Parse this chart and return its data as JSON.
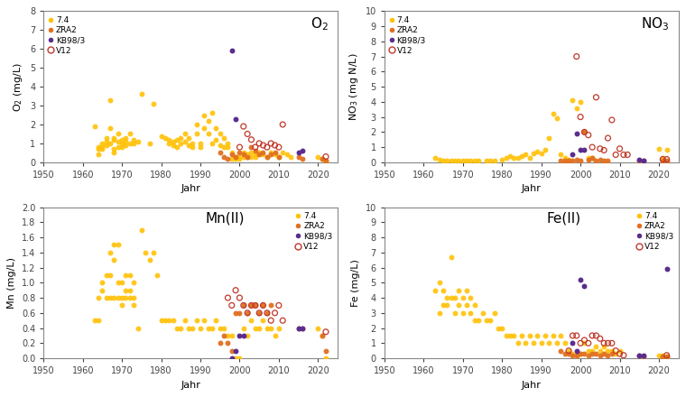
{
  "colors": {
    "7.4": "#FFC107",
    "ZRA2": "#E07020",
    "KB98/3": "#5B2D8E",
    "V12": "#C0392B"
  },
  "O2": {
    "7.4": {
      "x": [
        1963,
        1964,
        1964,
        1964,
        1965,
        1965,
        1965,
        1966,
        1966,
        1966,
        1967,
        1967,
        1967,
        1968,
        1968,
        1968,
        1968,
        1969,
        1969,
        1969,
        1970,
        1970,
        1970,
        1971,
        1971,
        1971,
        1972,
        1972,
        1973,
        1973,
        1974,
        1975,
        1977,
        1978,
        1980,
        1981,
        1982,
        1982,
        1983,
        1983,
        1984,
        1984,
        1985,
        1985,
        1986,
        1986,
        1987,
        1987,
        1988,
        1988,
        1989,
        1989,
        1990,
        1990,
        1991,
        1991,
        1992,
        1992,
        1993,
        1993,
        1994,
        1994,
        1995,
        1995,
        1996,
        1996,
        1997,
        1997,
        1998,
        1998,
        1999,
        1999,
        2000,
        2000,
        2001,
        2001,
        2002,
        2002,
        2003,
        2003,
        2004,
        2004,
        2005,
        2006,
        2007,
        2008,
        2009,
        2010,
        2011,
        2012,
        2013,
        2020,
        2021,
        2022
      ],
      "y": [
        1.9,
        0.8,
        0.7,
        0.4,
        1.0,
        0.8,
        0.7,
        1.3,
        1.1,
        0.9,
        3.3,
        1.8,
        1.0,
        1.3,
        1.2,
        0.7,
        0.5,
        1.5,
        1.1,
        0.8,
        1.2,
        1.0,
        0.8,
        1.3,
        1.1,
        0.9,
        1.5,
        1.0,
        1.2,
        1.0,
        1.1,
        3.6,
        1.0,
        3.1,
        1.4,
        1.3,
        1.2,
        1.0,
        1.1,
        0.9,
        1.2,
        0.8,
        1.3,
        1.0,
        1.5,
        1.1,
        1.3,
        0.9,
        1.0,
        0.8,
        2.0,
        1.5,
        1.0,
        0.8,
        2.5,
        1.8,
        2.2,
        1.5,
        2.6,
        1.0,
        1.8,
        1.2,
        1.5,
        0.9,
        1.3,
        0.8,
        1.0,
        0.8,
        0.5,
        0.2,
        0.3,
        0.2,
        0.3,
        0.2,
        0.5,
        0.3,
        0.4,
        0.3,
        0.5,
        0.3,
        0.4,
        0.3,
        0.5,
        0.4,
        0.3,
        0.5,
        0.4,
        0.3,
        0.5,
        0.4,
        0.3,
        0.3,
        0.2,
        0.1
      ]
    },
    "ZRA2": {
      "x": [
        1995,
        1996,
        1997,
        1998,
        1999,
        2000,
        2001,
        2002,
        2003,
        2004,
        2005,
        2006,
        2007,
        2008,
        2009,
        2010,
        2015,
        2016,
        2021,
        2022
      ],
      "y": [
        0.5,
        0.3,
        0.2,
        0.4,
        0.3,
        0.5,
        0.4,
        0.3,
        0.8,
        0.6,
        0.4,
        0.5,
        0.3,
        0.4,
        0.5,
        0.3,
        0.3,
        0.2,
        0.2,
        0.1
      ]
    },
    "KB98/3": {
      "x": [
        1998,
        1999,
        2015,
        2016
      ],
      "y": [
        5.9,
        2.3,
        0.5,
        0.6
      ]
    },
    "V12": {
      "x": [
        2000,
        2001,
        2002,
        2003,
        2004,
        2005,
        2006,
        2007,
        2008,
        2009,
        2010,
        2011,
        2022
      ],
      "y": [
        0.8,
        1.9,
        1.5,
        1.2,
        0.8,
        1.0,
        0.9,
        0.8,
        1.0,
        0.9,
        0.8,
        2.0,
        0.3
      ]
    }
  },
  "NO3": {
    "7.4": {
      "x": [
        1963,
        1964,
        1965,
        1966,
        1967,
        1968,
        1969,
        1970,
        1971,
        1972,
        1973,
        1974,
        1976,
        1977,
        1978,
        1980,
        1981,
        1982,
        1983,
        1984,
        1985,
        1986,
        1987,
        1988,
        1989,
        1990,
        1991,
        1992,
        1993,
        1994,
        1995,
        1996,
        1997,
        1998,
        1999,
        2000,
        2001,
        2002,
        2003,
        2020,
        2021,
        2022
      ],
      "y": [
        0.3,
        0.2,
        0.1,
        0.1,
        0.1,
        0.1,
        0.1,
        0.1,
        0.1,
        0.1,
        0.1,
        0.1,
        0.1,
        0.1,
        0.1,
        0.2,
        0.3,
        0.4,
        0.3,
        0.3,
        0.4,
        0.5,
        0.3,
        0.6,
        0.7,
        0.6,
        0.8,
        1.6,
        3.2,
        2.9,
        0.5,
        0.3,
        0.2,
        4.1,
        3.6,
        4.0,
        2.0,
        0.3,
        0.3,
        0.9,
        0.3,
        0.8
      ]
    },
    "ZRA2": {
      "x": [
        1995,
        1996,
        1997,
        1998,
        1999,
        2000,
        2001,
        2002,
        2003,
        2004,
        2005,
        2006,
        2007,
        2015,
        2016,
        2021,
        2022
      ],
      "y": [
        0.1,
        0.1,
        0.1,
        0.1,
        0.2,
        0.1,
        2.0,
        0.2,
        0.3,
        0.1,
        0.2,
        0.1,
        0.1,
        0.1,
        0.1,
        0.1,
        0.1
      ]
    },
    "KB98/3": {
      "x": [
        1998,
        1999,
        2000,
        2001,
        2015,
        2016
      ],
      "y": [
        0.5,
        1.9,
        0.8,
        0.8,
        0.2,
        0.1
      ]
    },
    "V12": {
      "x": [
        1999,
        2000,
        2001,
        2002,
        2003,
        2004,
        2005,
        2006,
        2007,
        2008,
        2009,
        2010,
        2011,
        2012,
        2021,
        2022
      ],
      "y": [
        7.0,
        3.0,
        2.0,
        1.8,
        1.0,
        4.3,
        0.9,
        0.8,
        1.6,
        2.8,
        0.5,
        0.9,
        0.5,
        0.5,
        0.2,
        0.2
      ]
    }
  },
  "Mn": {
    "7.4": {
      "x": [
        1963,
        1964,
        1964,
        1965,
        1965,
        1966,
        1966,
        1967,
        1967,
        1967,
        1968,
        1968,
        1968,
        1969,
        1969,
        1969,
        1970,
        1970,
        1970,
        1971,
        1971,
        1971,
        1972,
        1972,
        1972,
        1973,
        1973,
        1973,
        1974,
        1975,
        1976,
        1977,
        1978,
        1979,
        1980,
        1981,
        1982,
        1983,
        1984,
        1985,
        1986,
        1987,
        1988,
        1989,
        1990,
        1991,
        1992,
        1993,
        1994,
        1995,
        1996,
        1997,
        1998,
        1999,
        2000,
        2001,
        2002,
        2003,
        2004,
        2005,
        2006,
        2007,
        2008,
        2009,
        2010,
        2020,
        2021,
        2022
      ],
      "y": [
        0.5,
        0.8,
        0.5,
        1.0,
        0.9,
        1.1,
        0.8,
        1.4,
        1.1,
        0.8,
        1.5,
        1.3,
        0.8,
        1.5,
        1.0,
        0.8,
        1.0,
        0.8,
        0.7,
        1.1,
        0.9,
        0.8,
        1.1,
        0.9,
        0.8,
        1.0,
        0.8,
        0.7,
        0.4,
        1.7,
        1.4,
        1.3,
        1.4,
        1.1,
        0.5,
        0.5,
        0.5,
        0.5,
        0.4,
        0.4,
        0.5,
        0.4,
        0.4,
        0.5,
        0.4,
        0.5,
        0.4,
        0.4,
        0.5,
        0.4,
        0.4,
        0.3,
        0.3,
        0.0,
        0.0,
        0.4,
        0.3,
        0.5,
        0.4,
        0.4,
        0.5,
        0.4,
        0.4,
        0.3,
        0.4,
        0.4,
        0.3,
        0.0
      ]
    },
    "ZRA2": {
      "x": [
        1995,
        1996,
        1997,
        1998,
        1999,
        2000,
        2001,
        2002,
        2003,
        2004,
        2005,
        2006,
        2007,
        2008,
        2015,
        2016,
        2021,
        2022
      ],
      "y": [
        0.2,
        0.3,
        0.2,
        0.1,
        0.6,
        0.6,
        0.7,
        0.6,
        0.7,
        0.7,
        0.6,
        0.7,
        0.6,
        0.7,
        0.4,
        0.4,
        0.3,
        0.1
      ]
    },
    "KB98/3": {
      "x": [
        1998,
        1999,
        2000,
        2001,
        2015,
        2016
      ],
      "y": [
        0.0,
        0.1,
        0.3,
        0.3,
        0.4,
        0.4
      ]
    },
    "V12": {
      "x": [
        1997,
        1998,
        1999,
        2000,
        2001,
        2002,
        2003,
        2004,
        2005,
        2006,
        2007,
        2008,
        2009,
        2010,
        2011,
        2022
      ],
      "y": [
        0.8,
        0.7,
        0.9,
        0.8,
        0.7,
        0.6,
        0.7,
        0.7,
        0.6,
        0.7,
        0.6,
        0.5,
        0.6,
        0.7,
        0.5,
        0.35
      ]
    }
  },
  "Fe": {
    "7.4": {
      "x": [
        1963,
        1964,
        1964,
        1965,
        1965,
        1966,
        1966,
        1967,
        1967,
        1968,
        1968,
        1969,
        1969,
        1970,
        1970,
        1971,
        1971,
        1972,
        1972,
        1973,
        1973,
        1974,
        1975,
        1976,
        1977,
        1978,
        1979,
        1980,
        1981,
        1982,
        1983,
        1984,
        1985,
        1986,
        1987,
        1988,
        1989,
        1990,
        1991,
        1992,
        1993,
        1994,
        1995,
        1996,
        1997,
        1998,
        1999,
        2000,
        2001,
        2002,
        2003,
        2004,
        2005,
        2006,
        2007,
        2008,
        2009,
        2010,
        2020,
        2021,
        2022
      ],
      "y": [
        4.5,
        5.0,
        3.0,
        4.5,
        3.5,
        4.0,
        3.5,
        6.7,
        4.0,
        4.0,
        3.0,
        4.5,
        3.5,
        4.0,
        3.0,
        4.5,
        3.5,
        4.0,
        3.0,
        3.5,
        2.5,
        2.5,
        3.0,
        2.5,
        2.5,
        3.0,
        2.0,
        2.0,
        1.5,
        1.5,
        1.5,
        1.0,
        1.5,
        1.0,
        1.5,
        1.0,
        1.5,
        1.0,
        1.5,
        1.0,
        1.5,
        1.0,
        1.5,
        1.0,
        0.5,
        0.3,
        0.2,
        0.3,
        1.0,
        0.5,
        0.5,
        0.8,
        0.5,
        0.8,
        0.5,
        0.5,
        0.3,
        0.5,
        0.2,
        0.2,
        0.1
      ]
    },
    "ZRA2": {
      "x": [
        1995,
        1996,
        1997,
        1998,
        1999,
        2000,
        2001,
        2002,
        2003,
        2004,
        2005,
        2006,
        2007,
        2008,
        2015,
        2016,
        2021,
        2022
      ],
      "y": [
        0.5,
        0.3,
        0.3,
        0.2,
        0.2,
        0.3,
        0.3,
        0.2,
        0.3,
        0.3,
        0.2,
        0.3,
        0.2,
        0.3,
        0.2,
        0.1,
        0.1,
        0.1
      ]
    },
    "KB98/3": {
      "x": [
        1998,
        1999,
        2000,
        2001,
        2015,
        2016
      ],
      "y": [
        1.0,
        0.5,
        5.2,
        4.8,
        0.2,
        0.2
      ]
    },
    "V12": {
      "x": [
        1997,
        1998,
        1999,
        2000,
        2001,
        2002,
        2003,
        2004,
        2005,
        2006,
        2007,
        2008,
        2009,
        2010,
        2011,
        2022
      ],
      "y": [
        0.5,
        1.5,
        1.5,
        1.0,
        1.2,
        1.0,
        1.5,
        1.5,
        1.3,
        1.0,
        1.0,
        1.0,
        0.5,
        0.3,
        0.2,
        0.2
      ]
    },
    "KB98_extra": {
      "x": [
        2022
      ],
      "y": [
        5.9
      ]
    }
  },
  "ylabels": {
    "O2": "O$_2$ (mg/L)",
    "NO3": "NO$_3$ (mg N/L)",
    "Mn": "Mn (mg/L)",
    "Fe": "Fe (mg/L)"
  },
  "ylims": {
    "O2": [
      0,
      8
    ],
    "NO3": [
      0,
      10
    ],
    "Mn": [
      0,
      2
    ],
    "Fe": [
      0,
      10
    ]
  },
  "yticks": {
    "O2": [
      0,
      1,
      2,
      3,
      4,
      5,
      6,
      7,
      8
    ],
    "NO3": [
      0,
      1,
      2,
      3,
      4,
      5,
      6,
      7,
      8,
      9,
      10
    ],
    "Mn": [
      0,
      0.2,
      0.4,
      0.6,
      0.8,
      1.0,
      1.2,
      1.4,
      1.6,
      1.8,
      2.0
    ],
    "Fe": [
      0,
      1,
      2,
      3,
      4,
      5,
      6,
      7,
      8,
      9,
      10
    ]
  },
  "xlim": [
    1950,
    2025
  ],
  "xticks": [
    1950,
    1960,
    1970,
    1980,
    1990,
    2000,
    2010,
    2020
  ],
  "xlabel": "Jahr",
  "subplot_titles": {
    "O2": "O$_2$",
    "NO3": "NO$_3$",
    "Mn": "Mn(II)",
    "Fe": "Fe(II)"
  },
  "legend_loc": {
    "O2": "upper left",
    "NO3": "upper left",
    "Mn": "upper right",
    "Fe": "upper right"
  },
  "title_loc": {
    "O2": "upper right",
    "NO3": "upper right",
    "Mn": "upper left",
    "Fe": "upper left"
  }
}
